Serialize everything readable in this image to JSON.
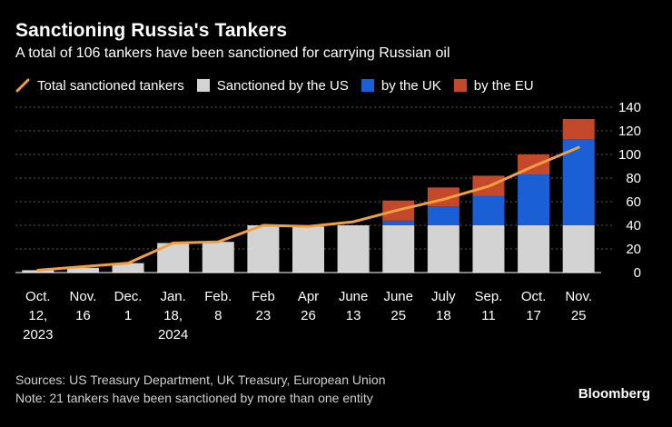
{
  "header": {
    "title": "Sanctioning Russia's Tankers",
    "subtitle": "A total of 106 tankers have been sanctioned for carrying Russian oil"
  },
  "legend": {
    "total": "Total sanctioned tankers",
    "us": "Sanctioned by the US",
    "uk": "by the UK",
    "eu": "by the EU"
  },
  "colors": {
    "us": "#d3d3d3",
    "uk": "#1a5fd6",
    "eu": "#c4492b",
    "total": "#f0a040",
    "grid": "#5a5a5a"
  },
  "chart_data": {
    "type": "bar",
    "stacked": true,
    "title": "Sanctioning Russia's Tankers",
    "categories": [
      [
        "Oct.",
        "12,",
        "2023"
      ],
      [
        "Nov.",
        "16"
      ],
      [
        "Dec.",
        "1"
      ],
      [
        "Jan.",
        "18,",
        "2024"
      ],
      [
        "Feb.",
        "8"
      ],
      [
        "Feb",
        "23"
      ],
      [
        "Apr",
        "26"
      ],
      [
        "June",
        "13"
      ],
      [
        "June",
        "25"
      ],
      [
        "July",
        "18"
      ],
      [
        "Sep.",
        "11"
      ],
      [
        "Oct.",
        "17"
      ],
      [
        "Nov.",
        "25"
      ]
    ],
    "series": [
      {
        "name": "Sanctioned by the US",
        "values": [
          2,
          4,
          8,
          25,
          26,
          40,
          39,
          40,
          40,
          40,
          40,
          40,
          40
        ]
      },
      {
        "name": "by the UK",
        "values": [
          0,
          0,
          0,
          0,
          0,
          0,
          0,
          0,
          4,
          16,
          25,
          43,
          73
        ]
      },
      {
        "name": "by the EU",
        "values": [
          0,
          0,
          0,
          0,
          0,
          0,
          0,
          0,
          17,
          16,
          17,
          17,
          17
        ]
      },
      {
        "name": "Total sanctioned tankers",
        "type": "line",
        "values": [
          2,
          5,
          8,
          25,
          26,
          40,
          39,
          43,
          53,
          62,
          73,
          90,
          106
        ]
      }
    ],
    "yticks": [
      0,
      20,
      40,
      60,
      80,
      100,
      120,
      140
    ],
    "ylim": [
      0,
      140
    ],
    "xlabel": "",
    "ylabel": "",
    "legend_position": "top-left"
  },
  "footer": {
    "sources": "Sources: US Treasury Department, UK Treasury, European Union",
    "note": "Note: 21 tankers have been sanctioned by more than one entity",
    "brand": "Bloomberg"
  }
}
